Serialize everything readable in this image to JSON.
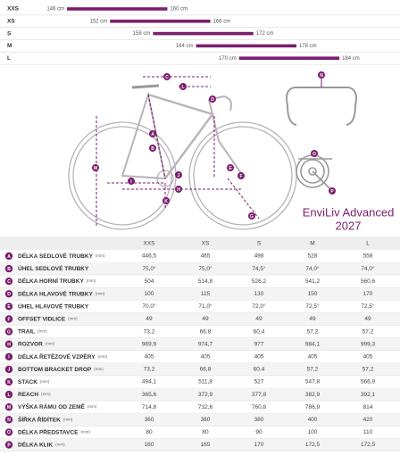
{
  "size_chart": {
    "rows": [
      {
        "size": "XXS",
        "from": {
          "value": 146,
          "label": "146 cm"
        },
        "to": {
          "value": 160,
          "label": "160 cm"
        }
      },
      {
        "size": "XS",
        "from": {
          "value": 152,
          "label": "152 cm"
        },
        "to": {
          "value": 166,
          "label": "166 cm"
        }
      },
      {
        "size": "S",
        "from": {
          "value": 158,
          "label": "158 cm"
        },
        "to": {
          "value": 172,
          "label": "172 cm"
        }
      },
      {
        "size": "M",
        "from": {
          "value": 164,
          "label": "164 cm"
        },
        "to": {
          "value": 178,
          "label": "178 cm"
        }
      },
      {
        "size": "L",
        "from": {
          "value": 170,
          "label": "170 cm"
        },
        "to": {
          "value": 184,
          "label": "184 cm"
        }
      }
    ]
  },
  "diagram": {
    "title": "EnviLiv Advanced",
    "year": "2027",
    "labels": [
      "A",
      "B",
      "C",
      "D",
      "E",
      "F",
      "G",
      "H",
      "I",
      "J",
      "K",
      "L",
      "M",
      "N",
      "O",
      "P"
    ]
  },
  "table": {
    "header": [
      "XXS",
      "XS",
      "S",
      "M",
      "L"
    ],
    "rows": [
      {
        "key": "A",
        "name": "DÉLKA SEDLOVÉ TRUBKY",
        "unit": "(mm)",
        "values": [
          "446,5",
          "465",
          "498",
          "528",
          "558"
        ]
      },
      {
        "key": "B",
        "name": "ÚHEL SEDLOVÉ TRUBKY",
        "values": [
          "75,0°",
          "75,0°",
          "74,5°",
          "74,0°",
          "74,0°"
        ]
      },
      {
        "key": "C",
        "name": "DÉLKA HORNÍ TRUBKY",
        "unit": "(mm)",
        "values": [
          "504",
          "514,8",
          "526,2",
          "541,2",
          "560,6"
        ]
      },
      {
        "key": "D",
        "name": "DÉLKA HLAVOVÉ TRUBKY",
        "unit": "(mm)",
        "values": [
          "100",
          "115",
          "130",
          "150",
          "170"
        ]
      },
      {
        "key": "E",
        "name": "ÚHEL HLAVOVÉ TRUBKY",
        "values": [
          "70,0°",
          "71,0°",
          "72,0°",
          "72,5°",
          "72,5°"
        ]
      },
      {
        "key": "F",
        "name": "OFFSET VIDLICE",
        "unit": "(mm)",
        "values": [
          "49",
          "49",
          "49",
          "49",
          "49"
        ]
      },
      {
        "key": "G",
        "name": "TRAIL",
        "unit": "(mm)",
        "values": [
          "73,2",
          "66,8",
          "60,4",
          "57,2",
          "57,2"
        ]
      },
      {
        "key": "H",
        "name": "ROZVOR",
        "unit": "(mm)",
        "values": [
          "969,9",
          "974,7",
          "977",
          "984,1",
          "999,3"
        ]
      },
      {
        "key": "I",
        "name": "DÉLKA ŘETĚZOVÉ VZPĚRY",
        "unit": "(mm)",
        "values": [
          "405",
          "405",
          "405",
          "405",
          "405"
        ]
      },
      {
        "key": "J",
        "name": "BOTTOM BRACKET DROP",
        "unit": "(mm)",
        "values": [
          "73,2",
          "66,8",
          "60,4",
          "57,2",
          "57,2"
        ]
      },
      {
        "key": "K",
        "name": "STACK",
        "unit": "(mm)",
        "values": [
          "494,1",
          "511,8",
          "527",
          "547,8",
          "566,9"
        ]
      },
      {
        "key": "L",
        "name": "REACH",
        "unit": "(mm)",
        "values": [
          "365,6",
          "372,9",
          "377,8",
          "382,9",
          "392,1"
        ]
      },
      {
        "key": "M",
        "name": "VÝŠKA RÁMU OD ZEMĚ",
        "unit": "(mm)",
        "values": [
          "714,8",
          "732,6",
          "760,8",
          "786,9",
          "814"
        ]
      },
      {
        "key": "N",
        "name": "ŠÍŘKA ŘÍDÍTEK",
        "unit": "(mm)",
        "values": [
          "360",
          "380",
          "380",
          "400",
          "420"
        ]
      },
      {
        "key": "O",
        "name": "DÉLKA PŘEDSTAVCE",
        "unit": "(mm)",
        "values": [
          "80",
          "80",
          "90",
          "100",
          "110"
        ]
      },
      {
        "key": "P",
        "name": "DÉLKA KLIK",
        "unit": "(mm)",
        "values": [
          "160",
          "165",
          "170",
          "172,5",
          "172,5"
        ]
      }
    ]
  }
}
